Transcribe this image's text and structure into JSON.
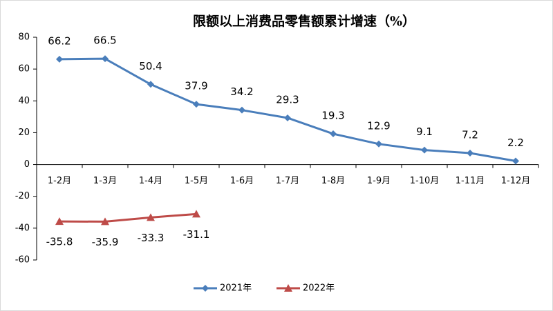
{
  "chart_data": {
    "type": "line",
    "title": "限额以上消费品零售额累计增速（%）",
    "categories": [
      "1-2月",
      "1-3月",
      "1-4月",
      "1-5月",
      "1-6月",
      "1-7月",
      "1-8月",
      "1-9月",
      "1-10月",
      "1-11月",
      "1-12月"
    ],
    "series": [
      {
        "name": "2021年",
        "color": "#4a7ebb",
        "marker": "diamond",
        "label_position": "above",
        "values": [
          66.2,
          66.5,
          50.4,
          37.9,
          34.2,
          29.3,
          19.3,
          12.9,
          9.1,
          7.2,
          2.2
        ]
      },
      {
        "name": "2022年",
        "color": "#be4b48",
        "marker": "triangle",
        "label_position": "below",
        "values": [
          -35.8,
          -35.9,
          -33.3,
          -31.1,
          null,
          null,
          null,
          null,
          null,
          null,
          null
        ]
      }
    ],
    "ylim": [
      -60,
      80
    ],
    "yticks": [
      -60,
      -40,
      -20,
      0,
      20,
      40,
      60,
      80
    ],
    "grid": false,
    "legend": "bottom"
  }
}
